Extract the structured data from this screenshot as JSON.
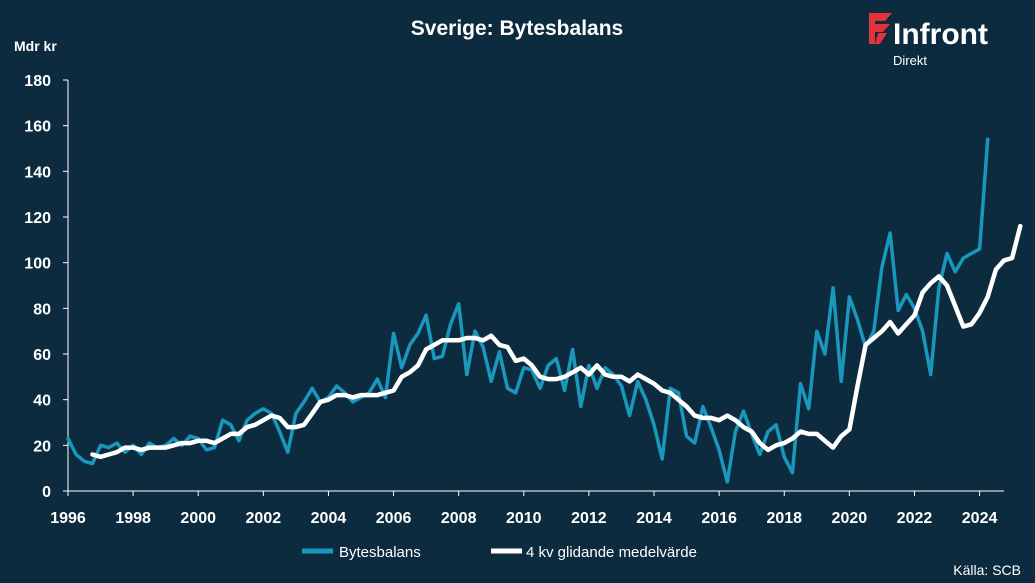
{
  "brand": {
    "name": "Infront",
    "sub": "Direkt",
    "color": "#e2323c"
  },
  "source": "Källa:  SCB",
  "colors": {
    "background": "#0d2b3e",
    "series1": "#1a97bd",
    "series2": "#ffffff",
    "text": "#ffffff"
  },
  "chart_data": {
    "type": "line",
    "title": "Sverige: Bytesbalans",
    "ylabel": "Mdr kr",
    "xlabel": "",
    "ylim": [
      0,
      180
    ],
    "yticks": [
      "0",
      "20",
      "40",
      "60",
      "80",
      "100",
      "120",
      "140",
      "160",
      "180"
    ],
    "xlim": [
      1996,
      2024.75
    ],
    "xticks": [
      "1996",
      "1998",
      "2000",
      "2002",
      "2004",
      "2006",
      "2008",
      "2010",
      "2012",
      "2014",
      "2016",
      "2018",
      "2020",
      "2022",
      "2024"
    ],
    "grid": false,
    "legend": "bottom-center",
    "frequency": "quarterly",
    "series": [
      {
        "name": "Bytesbalans",
        "color": "#1a97bd",
        "start": 1996.0,
        "values": [
          23,
          16,
          13,
          12,
          20,
          19,
          21,
          17,
          20,
          16,
          21,
          19,
          20,
          23,
          20,
          24,
          23,
          18,
          19,
          31,
          29,
          22,
          31,
          34,
          36,
          34,
          26,
          17,
          34,
          39,
          45,
          39,
          41,
          46,
          43,
          39,
          41,
          43,
          49,
          41,
          69,
          54,
          64,
          69,
          77,
          58,
          59,
          73,
          82,
          51,
          70,
          63,
          48,
          61,
          45,
          43,
          54,
          53,
          45,
          55,
          58,
          44,
          62,
          37,
          55,
          45,
          54,
          51,
          46,
          33,
          48,
          40,
          29,
          14,
          45,
          43,
          24,
          21,
          37,
          28,
          18,
          4,
          26,
          35,
          25,
          16,
          26,
          29,
          15,
          8,
          47,
          36,
          70,
          60,
          89,
          48,
          85,
          75,
          63,
          70,
          98,
          113,
          79,
          86,
          80,
          70,
          51,
          89,
          104,
          96,
          102,
          104,
          106,
          154
        ]
      },
      {
        "name": "4 kv glidande medelvärde",
        "color": "#ffffff",
        "start": 1996.75,
        "values": [
          16,
          15,
          16,
          17,
          19,
          19,
          18,
          19,
          19,
          19,
          20,
          21,
          21,
          22,
          22,
          21,
          23,
          25,
          25,
          28,
          29,
          31,
          33,
          32,
          28,
          28,
          29,
          34,
          39,
          40,
          42,
          42,
          41,
          42,
          42,
          42,
          43,
          44,
          50,
          52,
          55,
          62,
          64,
          66,
          66,
          66,
          67,
          67,
          66,
          68,
          64,
          63,
          57,
          58,
          55,
          50,
          49,
          49,
          50,
          52,
          54,
          51,
          55,
          51,
          50,
          50,
          48,
          51,
          49,
          47,
          44,
          43,
          40,
          37,
          33,
          32,
          32,
          31,
          33,
          31,
          28,
          26,
          21,
          18,
          20,
          21,
          23,
          26,
          25,
          25,
          22,
          19,
          24,
          27,
          46,
          64,
          67,
          70,
          74,
          69,
          73,
          77,
          87,
          91,
          94,
          90,
          81,
          72,
          73,
          78,
          85,
          97,
          101,
          102,
          116
        ]
      }
    ]
  }
}
